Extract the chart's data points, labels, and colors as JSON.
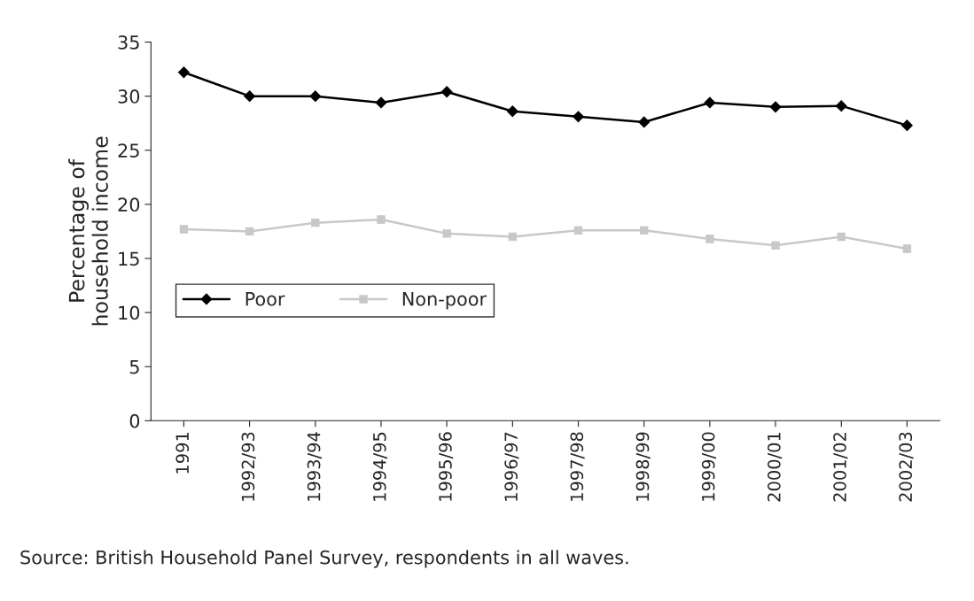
{
  "chart_data": {
    "type": "line",
    "ylabel": "Percentage of\nhousehold income",
    "categories": [
      "1991",
      "1992/93",
      "1993/94",
      "1994/95",
      "1995/96",
      "1996/97",
      "1997/98",
      "1998/99",
      "1999/00",
      "2000/01",
      "2001/02",
      "2002/03"
    ],
    "series": [
      {
        "name": "Poor",
        "color": "#000000",
        "marker": "diamond",
        "values": [
          32.2,
          30.0,
          30.0,
          29.4,
          30.4,
          28.6,
          28.1,
          27.6,
          29.4,
          29.0,
          29.1,
          27.3
        ]
      },
      {
        "name": "Non-poor",
        "color": "#c8c8c8",
        "marker": "square",
        "values": [
          17.7,
          17.5,
          18.3,
          18.6,
          17.3,
          17.0,
          17.6,
          17.6,
          16.8,
          16.2,
          17.0,
          15.9
        ]
      }
    ],
    "ylim": [
      0,
      35
    ],
    "yticks": [
      0,
      5,
      10,
      15,
      20,
      25,
      30,
      35
    ],
    "grid": false,
    "legend": "bottom left",
    "annotations": [
      "Source: British Household Panel Survey, respondents in all waves."
    ]
  }
}
